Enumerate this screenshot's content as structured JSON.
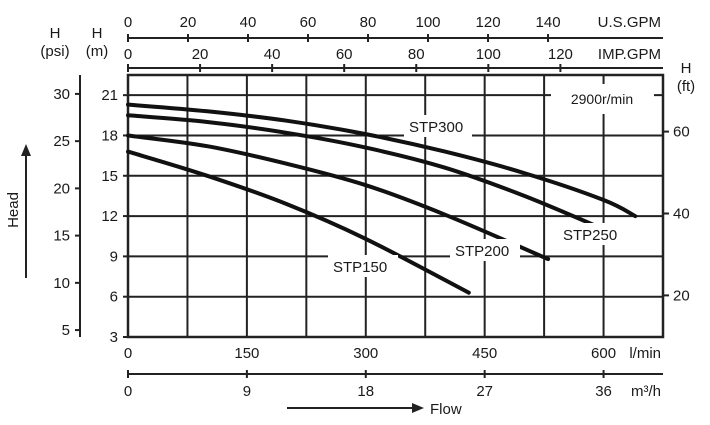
{
  "chart_data": {
    "type": "line",
    "speed_label": "2900r/min",
    "head_axis_label": "Head",
    "flow_axis_label": "Flow",
    "axes": {
      "flow_lmin": {
        "unit": "l/min",
        "range": [
          0,
          675
        ],
        "ticks": [
          0,
          150,
          300,
          450,
          600
        ]
      },
      "flow_m3h": {
        "unit": "m³/h",
        "ticks": [
          0,
          9,
          18,
          27,
          36
        ],
        "lmin_per_unit": 16.6667
      },
      "flow_usgpm": {
        "unit": "U.S.GPM",
        "ticks": [
          0,
          20,
          40,
          60,
          80,
          100,
          120,
          140
        ],
        "lmin_per_unit": 3.7854
      },
      "flow_impgpm": {
        "unit": "IMP.GPM",
        "ticks": [
          0,
          20,
          40,
          60,
          80,
          100,
          120
        ],
        "lmin_per_unit": 4.5461
      },
      "head_m": {
        "unit": "H\n(m)",
        "range": [
          3,
          22.5
        ],
        "ticks": [
          3,
          6,
          9,
          12,
          15,
          18,
          21
        ]
      },
      "head_psi": {
        "unit": "H\n(psi)",
        "ticks": [
          5,
          10,
          15,
          20,
          25,
          30
        ],
        "m_per_unit": 0.70307
      },
      "head_ft": {
        "unit": "H\n(ft)",
        "ticks": [
          20,
          40,
          60
        ],
        "m_per_unit": 0.3048
      }
    },
    "grid": true,
    "series": [
      {
        "name": "STP150",
        "x": [
          0,
          100,
          200,
          300,
          430
        ],
        "y": [
          16.8,
          15.0,
          12.9,
          10.3,
          6.3
        ]
      },
      {
        "name": "STP200",
        "x": [
          0,
          100,
          200,
          300,
          400,
          530
        ],
        "y": [
          18.0,
          17.2,
          15.9,
          14.3,
          12.1,
          8.8
        ]
      },
      {
        "name": "STP250",
        "x": [
          0,
          100,
          200,
          300,
          400,
          500,
          605
        ],
        "y": [
          19.5,
          19.0,
          18.2,
          17.1,
          15.6,
          13.5,
          10.9
        ]
      },
      {
        "name": "STP300",
        "x": [
          0,
          100,
          200,
          300,
          400,
          500,
          600,
          640
        ],
        "y": [
          20.3,
          19.8,
          19.1,
          18.1,
          16.8,
          15.2,
          13.2,
          12.0
        ]
      }
    ]
  }
}
